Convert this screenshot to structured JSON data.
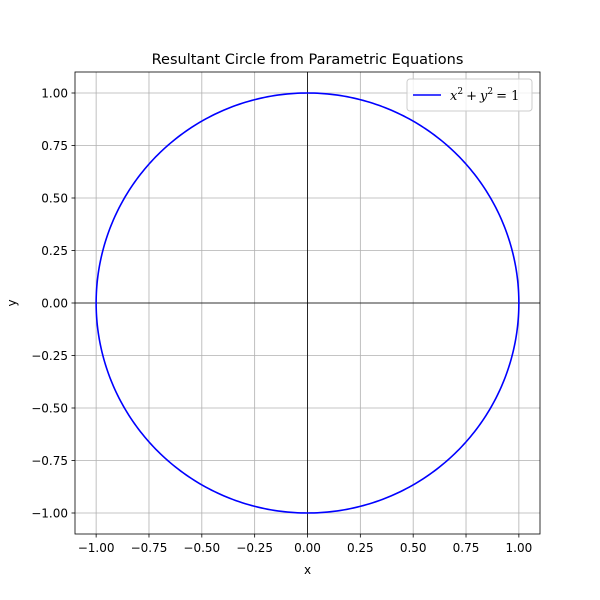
{
  "chart_data": {
    "type": "line",
    "title": "Resultant Circle from Parametric Equations",
    "xlabel": "x",
    "ylabel": "y",
    "xlim": [
      -1.1,
      1.1
    ],
    "ylim": [
      -1.1,
      1.1
    ],
    "xticks": [
      -1.0,
      -0.75,
      -0.5,
      -0.25,
      0.0,
      0.25,
      0.5,
      0.75,
      1.0
    ],
    "yticks": [
      -1.0,
      -0.75,
      -0.5,
      -0.25,
      0.0,
      0.25,
      0.5,
      0.75,
      1.0
    ],
    "xtick_labels": [
      "−1.00",
      "−0.75",
      "−0.50",
      "−0.25",
      "0.00",
      "0.25",
      "0.50",
      "0.75",
      "1.00"
    ],
    "ytick_labels": [
      "−1.00",
      "−0.75",
      "−0.50",
      "−0.25",
      "0.00",
      "0.25",
      "0.50",
      "0.75",
      "1.00"
    ],
    "grid": true,
    "reference_lines": {
      "x": 0,
      "y": 0,
      "color": "#000000"
    },
    "legend_position": "upper-right",
    "series": [
      {
        "name": "x² + y² = 1",
        "name_parts": {
          "x": "x",
          "x_exp": "2",
          "plus": "+",
          "y": "y",
          "y_exp": "2",
          "eq": "= 1"
        },
        "kind": "parametric-circle",
        "center": [
          0,
          0
        ],
        "radius": 1,
        "color": "#0000ff"
      }
    ]
  }
}
